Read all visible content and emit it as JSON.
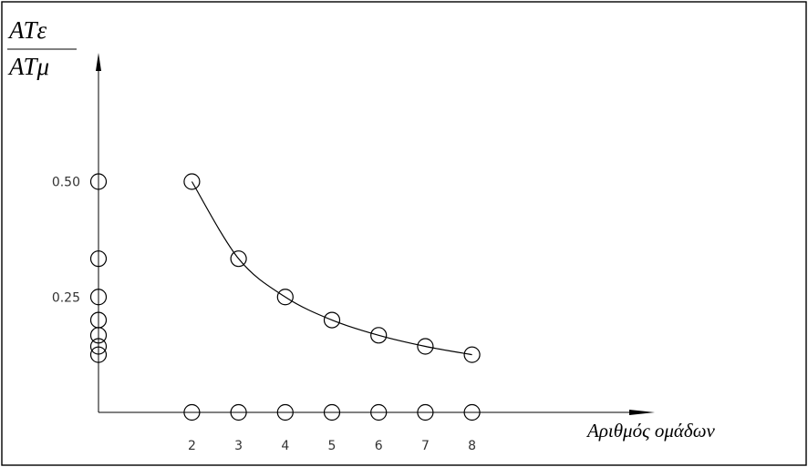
{
  "chart_data": {
    "type": "scatter",
    "title": "",
    "ylabel": {
      "numerator": "ATε",
      "denominator": "ATμ"
    },
    "xlabel": "Αριθμός ομάδων",
    "x_ticks": [
      "2",
      "3",
      "4",
      "5",
      "6",
      "7",
      "8"
    ],
    "y_ticks": [
      {
        "value": 0.5,
        "label": "0.50"
      },
      {
        "value": 0.25,
        "label": "0.25"
      }
    ],
    "xlim": [
      0,
      8
    ],
    "ylim": [
      0,
      0.5
    ],
    "series": [
      {
        "points": [
          [
            2,
            0.5
          ],
          [
            3,
            0.333
          ],
          [
            4,
            0.25
          ],
          [
            5,
            0.2
          ],
          [
            6,
            0.167
          ],
          [
            7,
            0.143
          ],
          [
            8,
            0.125
          ]
        ],
        "smooth_curve": true
      },
      {
        "points": [
          [
            2,
            0
          ],
          [
            3,
            0
          ],
          [
            4,
            0
          ],
          [
            5,
            0
          ],
          [
            6,
            0
          ],
          [
            7,
            0
          ],
          [
            8,
            0
          ]
        ]
      },
      {
        "points": [
          [
            0,
            0.5
          ],
          [
            0,
            0.333
          ],
          [
            0,
            0.25
          ],
          [
            0,
            0.2
          ],
          [
            0,
            0.167
          ],
          [
            0,
            0.143
          ],
          [
            0,
            0.125
          ]
        ]
      }
    ],
    "grid": false,
    "legend": "none",
    "colors": {
      "ink": "#000000",
      "tick_text": "#333333"
    }
  }
}
